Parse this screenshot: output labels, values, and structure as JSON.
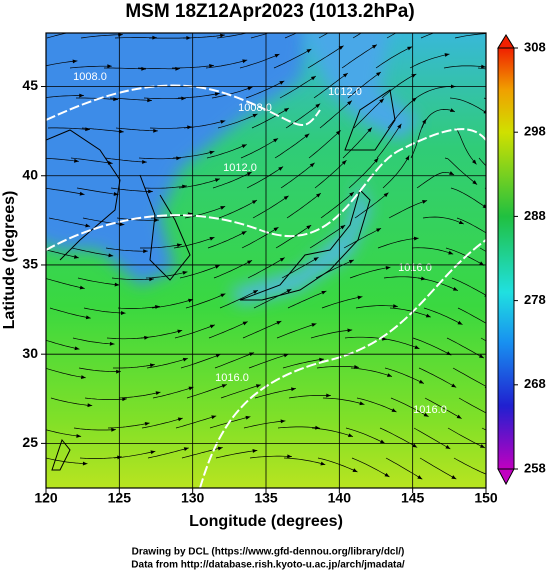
{
  "chart_data": {
    "type": "field",
    "title": "MSM 18Z12Apr2023 (1013.2hPa)",
    "xlabel": "Longitude (degrees)",
    "ylabel": "Latitude  (degrees)",
    "xlim": [
      120,
      150
    ],
    "xticks": [
      120,
      125,
      130,
      135,
      140,
      145,
      150
    ],
    "ylim": [
      22.5,
      48
    ],
    "yticks": [
      25,
      30,
      35,
      40,
      45
    ],
    "grid": true,
    "colorbar": {
      "lim": [
        258,
        308
      ],
      "ticks": [
        258,
        268,
        278,
        288,
        298,
        308
      ]
    },
    "contour_labels": [
      "1008.0",
      "1008.0",
      "1012.0",
      "1012.0",
      "1016.0",
      "1016.0",
      "1016.0"
    ],
    "credits": [
      "Drawing by DCL (https://www.gfd-dennou.org/library/dcl/)",
      "Data from http://database.rish.kyoto-u.ac.jp/arch/jmadata/"
    ]
  }
}
